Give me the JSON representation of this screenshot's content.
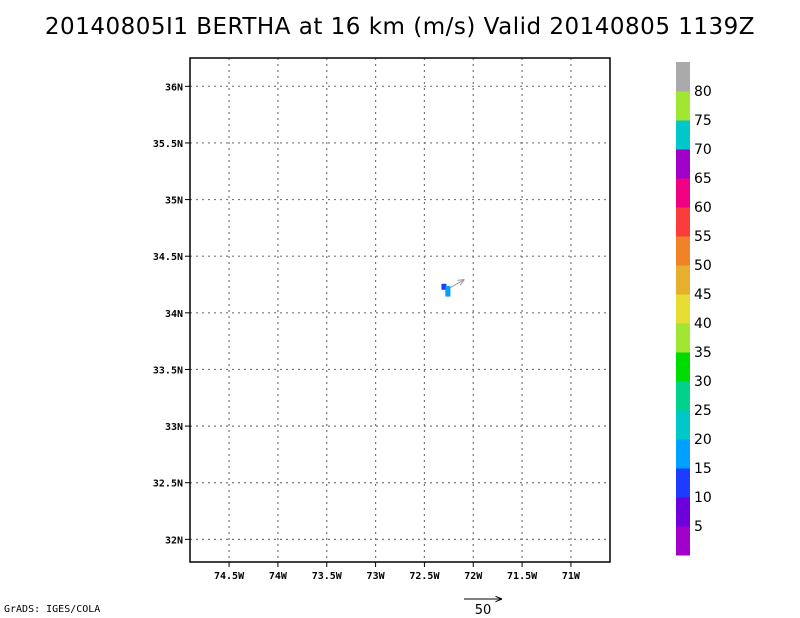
{
  "title": "20140805I1 BERTHA at 16 km (m/s) Valid 20140805 1139Z",
  "credit": "GrADS: IGES/COLA",
  "chart_data": {
    "type": "heatmap",
    "title": "20140805I1 BERTHA at 16 km (m/s) Valid 20140805 1139Z",
    "x_axis": {
      "range": [
        -74.9,
        -70.6
      ],
      "ticks": [
        -74.5,
        -74,
        -73.5,
        -73,
        -72.5,
        -72,
        -71.5,
        -71
      ],
      "tick_labels": [
        "74.5W",
        "74W",
        "73.5W",
        "73W",
        "72.5W",
        "72W",
        "71.5W",
        "71W"
      ]
    },
    "y_axis": {
      "range": [
        31.8,
        36.25
      ],
      "ticks": [
        32,
        32.5,
        33,
        33.5,
        34,
        34.5,
        35,
        35.5,
        36
      ],
      "tick_labels": [
        "32N",
        "32.5N",
        "33N",
        "33.5N",
        "34N",
        "34.5N",
        "35N",
        "35.5N",
        "36N"
      ]
    },
    "grid": true,
    "colorbar": {
      "position": "right",
      "labels": [
        "5",
        "10",
        "15",
        "20",
        "25",
        "30",
        "35",
        "40",
        "45",
        "50",
        "55",
        "60",
        "65",
        "70",
        "75",
        "80"
      ],
      "colors": [
        "#a000c8",
        "#6e00dc",
        "#1e3cff",
        "#00a0ff",
        "#00c8c8",
        "#00d28c",
        "#00dc00",
        "#a0e632",
        "#e6dc32",
        "#e6af2d",
        "#f08228",
        "#fa3c3c",
        "#f00082",
        "#a000c8",
        "#00c8c8",
        "#a0e632",
        "#aaaaaa"
      ]
    },
    "cells": [
      {
        "lon": -72.3,
        "lat": 34.23,
        "speed": 10
      },
      {
        "lon": -72.26,
        "lat": 34.21,
        "speed": 15
      },
      {
        "lon": -72.26,
        "lat": 34.17,
        "speed": 15
      }
    ],
    "vectors": [
      {
        "lon": -72.24,
        "lat": 34.22,
        "speed": 22,
        "direction_deg": 30
      }
    ],
    "reference_vector": {
      "label": "50",
      "value": 50
    }
  }
}
